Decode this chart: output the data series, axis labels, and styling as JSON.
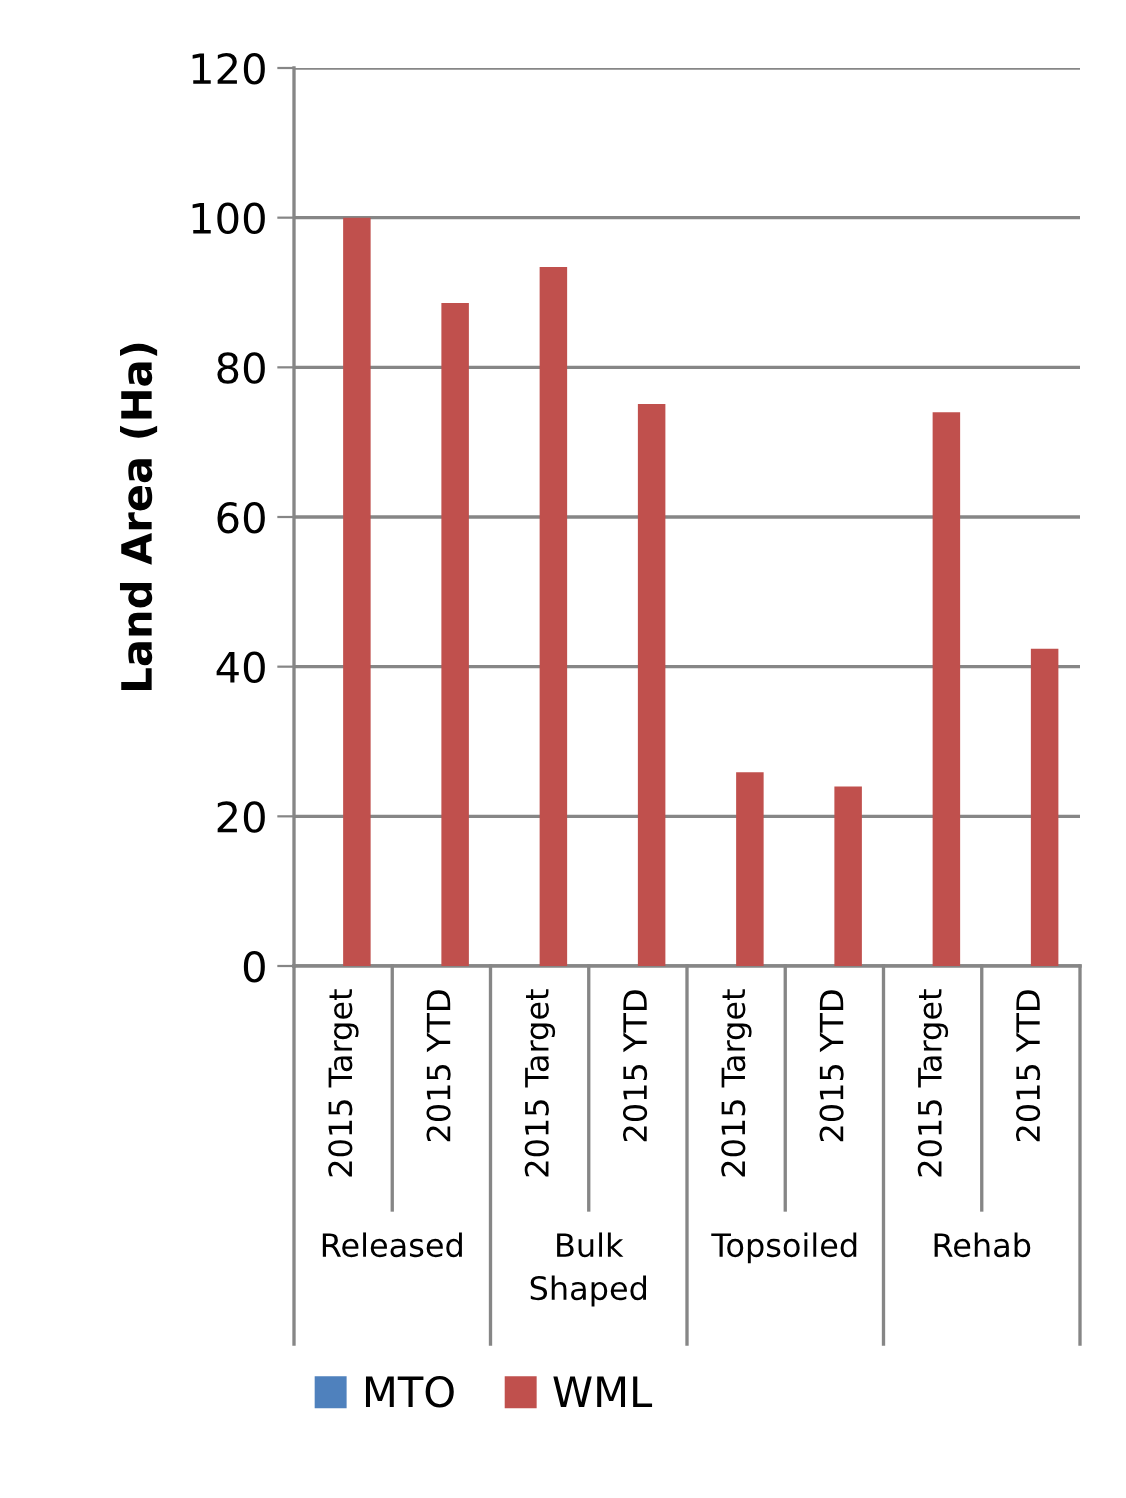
{
  "chart_data": {
    "type": "bar",
    "ylabel": "Land Area (Ha)",
    "categories": [
      "2015 Target",
      "2015 YTD",
      "2015 Target",
      "2015 YTD",
      "2015 Target",
      "2015 YTD",
      "2015 Target",
      "2015 YTD"
    ],
    "annotations": [
      "Released",
      "Bulk Shaped",
      "Topsoiled",
      "Rehab"
    ],
    "series": [
      {
        "name": "MTO",
        "color": "#4f81bd",
        "values": [
          null,
          null,
          null,
          null,
          null,
          null,
          null,
          null
        ]
      },
      {
        "name": "WML",
        "color": "#c0504d",
        "values": [
          100,
          88.6,
          93.4,
          75.1,
          25.9,
          24.0,
          74.0,
          42.4
        ]
      }
    ],
    "ylim": [
      0,
      120
    ],
    "yticks": [
      0,
      20,
      40,
      60,
      80,
      100,
      120
    ],
    "grid": "y",
    "legend": "bottom"
  }
}
